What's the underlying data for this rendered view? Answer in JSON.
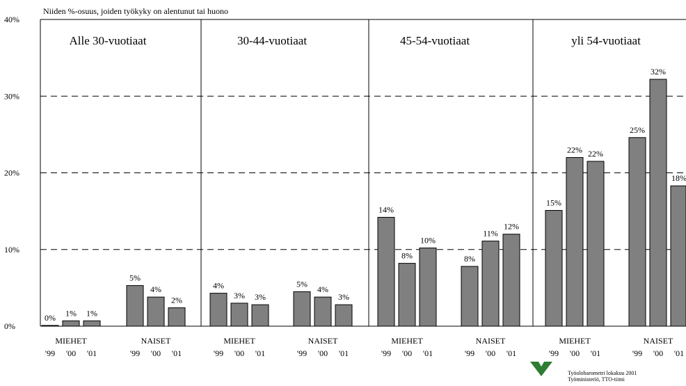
{
  "chart_data": {
    "type": "bar",
    "title": "Niiden %-osuus, joiden työkyky on alentunut tai huono",
    "yticks": [
      "0%",
      "10%",
      "20%",
      "30%",
      "40%"
    ],
    "ylim": [
      0,
      40
    ],
    "grid": "dashed horizontal",
    "year_labels": [
      "'99",
      "'00",
      "'01"
    ],
    "panels": [
      {
        "title": "Alle 30-vuotiaat",
        "groups": [
          {
            "label": "MIEHET",
            "values": [
              0.1,
              0.7,
              0.7
            ],
            "value_labels": [
              "0%",
              "1%",
              "1%"
            ]
          },
          {
            "label": "NAISET",
            "values": [
              5.3,
              3.8,
              2.4
            ],
            "value_labels": [
              "5%",
              "4%",
              "2%"
            ]
          }
        ]
      },
      {
        "title": "30-44-vuotiaat",
        "groups": [
          {
            "label": "MIEHET",
            "values": [
              4.3,
              3.0,
              2.8
            ],
            "value_labels": [
              "4%",
              "3%",
              "3%"
            ]
          },
          {
            "label": "NAISET",
            "values": [
              4.5,
              3.8,
              2.8
            ],
            "value_labels": [
              "5%",
              "4%",
              "3%"
            ]
          }
        ]
      },
      {
        "title": "45-54-vuotiaat",
        "groups": [
          {
            "label": "MIEHET",
            "values": [
              14.2,
              8.2,
              10.2
            ],
            "value_labels": [
              "14%",
              "8%",
              "10%"
            ]
          },
          {
            "label": "NAISET",
            "values": [
              7.8,
              11.1,
              12.0
            ],
            "value_labels": [
              "8%",
              "11%",
              "12%"
            ]
          }
        ]
      },
      {
        "title": "yli 54-vuotiaat",
        "groups": [
          {
            "label": "MIEHET",
            "values": [
              15.1,
              22.0,
              21.5
            ],
            "value_labels": [
              "15%",
              "22%",
              "22%"
            ]
          },
          {
            "label": "NAISET",
            "values": [
              24.6,
              32.2,
              18.3
            ],
            "value_labels": [
              "25%",
              "32%",
              "18%"
            ]
          }
        ]
      }
    ]
  },
  "footer": {
    "line1": "Työolobarometri lokakuu 2001",
    "line2": "Työministeriö, TTO-tiimi"
  }
}
